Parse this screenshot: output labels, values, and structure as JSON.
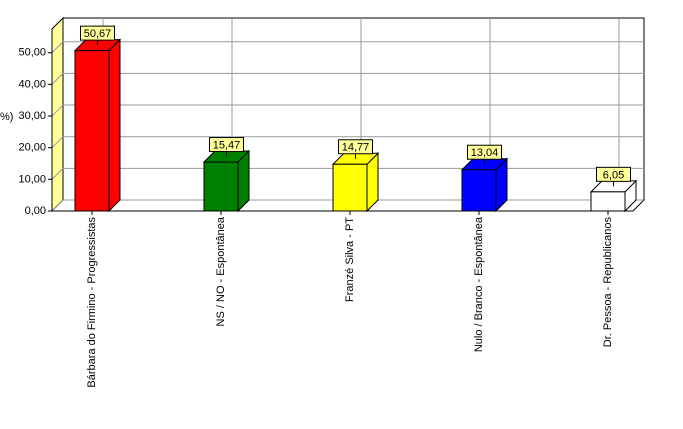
{
  "chart_data": {
    "type": "bar3d",
    "y_label": "%)",
    "categories": [
      "Bárbara do Firmino - Progressistas",
      "NS / NO - Espontânea",
      "Franzé Silva - PT",
      "Nulo / Branco - Espontânea",
      "Dr. Pessoa - Republicanos"
    ],
    "values": [
      50.67,
      15.47,
      14.77,
      13.04,
      6.05
    ],
    "value_labels": [
      "50,67",
      "15,47",
      "14,77",
      "13,04",
      "6,05"
    ],
    "colors": [
      "#ff0000",
      "#008000",
      "#ffff00",
      "#0000ff",
      "#ffffff"
    ],
    "ylim": [
      0,
      57.5
    ],
    "yticks": [
      {
        "value": 0,
        "label": "0,00"
      },
      {
        "value": 10,
        "label": "10,00"
      },
      {
        "value": 20,
        "label": "20,00"
      },
      {
        "value": 30,
        "label": "30,00"
      },
      {
        "value": 40,
        "label": "40,00"
      },
      {
        "value": 50,
        "label": "50,00"
      }
    ],
    "grid": true
  }
}
